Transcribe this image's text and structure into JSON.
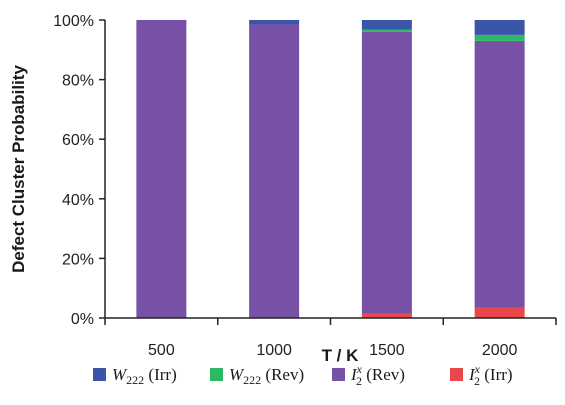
{
  "chart_data": {
    "type": "bar",
    "stacked": true,
    "title": "",
    "xlabel": "T / K",
    "ylabel": "Defect Cluster Probability",
    "categories": [
      "500",
      "1000",
      "1500",
      "2000"
    ],
    "ylim": [
      0,
      100
    ],
    "y_ticks": [
      "0%",
      "20%",
      "40%",
      "60%",
      "80%",
      "100%"
    ],
    "grid": false,
    "legend_position": "bottom",
    "series": [
      {
        "key": "i2_irr",
        "legend_main": "I",
        "legend_sub": "2",
        "legend_sup": "x",
        "legend_suffix": " (Irr)",
        "color": "#e8474c",
        "values": [
          0,
          0,
          1.5,
          3.5
        ]
      },
      {
        "key": "i2_rev",
        "legend_main": "I",
        "legend_sub": "2",
        "legend_sup": "x",
        "legend_suffix": " (Rev)",
        "color": "#7651a5",
        "values": [
          100,
          98.5,
          94.5,
          89.5
        ]
      },
      {
        "key": "w222_rev",
        "legend_main": "W",
        "legend_sub": "222",
        "legend_sup": "",
        "legend_suffix": " (Rev)",
        "color": "#2db863",
        "values": [
          0,
          0,
          0.8,
          2
        ]
      },
      {
        "key": "w222_irr",
        "legend_main": "W",
        "legend_sub": "222",
        "legend_sup": "",
        "legend_suffix": " (Irr)",
        "color": "#3b55a8",
        "values": [
          0,
          1.5,
          3.2,
          5
        ]
      }
    ],
    "legend_order": [
      "w222_irr",
      "w222_rev",
      "i2_rev",
      "i2_irr"
    ]
  }
}
